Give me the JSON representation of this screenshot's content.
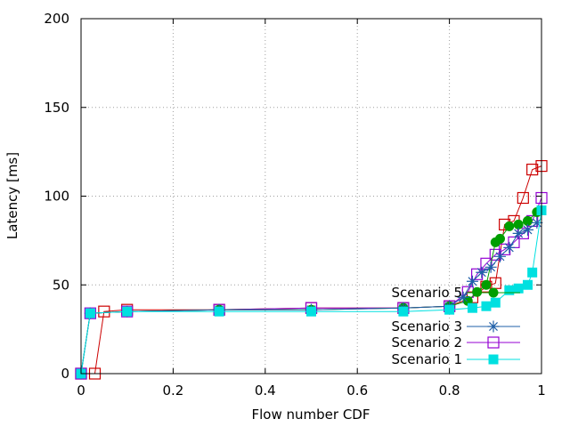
{
  "chart_data": {
    "type": "line",
    "xlabel": "Flow number CDF",
    "ylabel": "Latency [ms]",
    "xlim": [
      0,
      1
    ],
    "ylim": [
      0,
      200
    ],
    "x_ticks": [
      "0",
      "0.2",
      "0.4",
      "0.6",
      "0.8",
      "1"
    ],
    "y_ticks": [
      "0",
      "50",
      "100",
      "150",
      "200"
    ],
    "grid": true,
    "legend_position": "bottom-right",
    "series": [
      {
        "name": "Scenario 5",
        "color": "#009e00",
        "marker": "filled-circle",
        "x": [
          0.0,
          0.02,
          0.1,
          0.3,
          0.5,
          0.7,
          0.8,
          0.84,
          0.86,
          0.88,
          0.9,
          0.91,
          0.93,
          0.95,
          0.97,
          0.99
        ],
        "y": [
          0,
          34,
          35,
          36,
          36,
          37,
          38,
          41,
          46,
          50,
          74,
          76,
          83,
          84,
          86,
          91
        ]
      },
      {
        "name": "Scenario 3",
        "color": "#1f5fa8",
        "marker": "asterisk",
        "x": [
          0.0,
          0.02,
          0.1,
          0.3,
          0.5,
          0.7,
          0.8,
          0.83,
          0.85,
          0.87,
          0.89,
          0.91,
          0.93,
          0.95,
          0.97,
          0.99
        ],
        "y": [
          0,
          34,
          35,
          36,
          36,
          37,
          38,
          43,
          52,
          57,
          60,
          66,
          71,
          79,
          81,
          85
        ]
      },
      {
        "name": "Scenario 2",
        "color": "#9400d3",
        "marker": "open-square",
        "x": [
          0.0,
          0.02,
          0.1,
          0.3,
          0.5,
          0.7,
          0.8,
          0.84,
          0.86,
          0.88,
          0.9,
          0.92,
          0.94,
          0.96,
          0.98,
          1.0
        ],
        "y": [
          0,
          34,
          35,
          36,
          37,
          37,
          38,
          46,
          56,
          62,
          67,
          70,
          74,
          79,
          86,
          99
        ]
      },
      {
        "name": "Scenario 1",
        "color": "#00e0e0",
        "marker": "filled-square",
        "x": [
          0.0,
          0.02,
          0.1,
          0.3,
          0.5,
          0.7,
          0.8,
          0.85,
          0.88,
          0.9,
          0.93,
          0.95,
          0.97,
          0.98,
          1.0
        ],
        "y": [
          0,
          34,
          35,
          35,
          35,
          35,
          36,
          37,
          38,
          40,
          47,
          48,
          50,
          57,
          92
        ]
      },
      {
        "name": "",
        "color": "#cc0000",
        "marker": "open-square",
        "x": [
          0.0,
          0.03,
          0.05,
          0.1,
          0.3,
          0.5,
          0.7,
          0.8,
          0.85,
          0.88,
          0.9,
          0.92,
          0.94,
          0.96,
          0.98,
          1.0
        ],
        "y": [
          0,
          0,
          35,
          36,
          36,
          37,
          37,
          38,
          43,
          49,
          51,
          84,
          86,
          99,
          115,
          117
        ]
      }
    ]
  }
}
